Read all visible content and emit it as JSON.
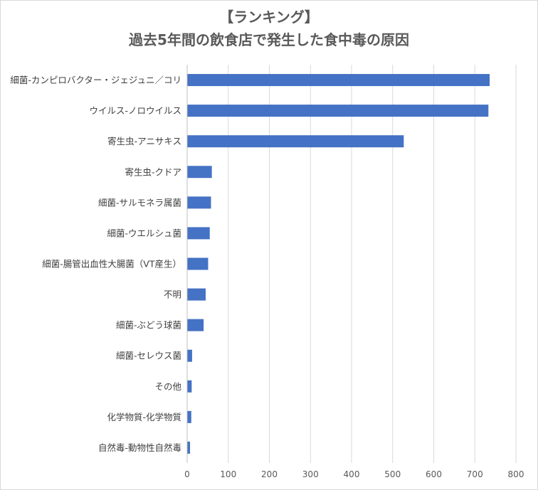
{
  "chart_data": {
    "type": "bar",
    "orientation": "horizontal",
    "title_lines": [
      "【ランキング】",
      "過去5年間の飲食店で発生した食中毒の原因"
    ],
    "categories": [
      "細菌-カンピロバクター・ジェジュニ／コリ",
      "ウイルス-ノロウイルス",
      "寄生虫-アニサキス",
      "寄生虫-クドア",
      "細菌-サルモネラ属菌",
      "細菌-ウエルシュ菌",
      "細菌-腸管出血性大腸菌（VT産生）",
      "不明",
      "細菌-ぶどう球菌",
      "細菌-セレウス菌",
      "その他",
      "化学物質-化学物質",
      "自然毒-動物性自然毒"
    ],
    "values": [
      736,
      733,
      527,
      60,
      58,
      55,
      51,
      45,
      40,
      12,
      11,
      10,
      7
    ],
    "xlim": [
      0,
      800
    ],
    "xticks": [
      0,
      100,
      200,
      300,
      400,
      500,
      600,
      700,
      800
    ],
    "grid": "vertical",
    "legend": "none",
    "bar_color": "#4472c4",
    "grid_color": "#d9d9d9"
  }
}
